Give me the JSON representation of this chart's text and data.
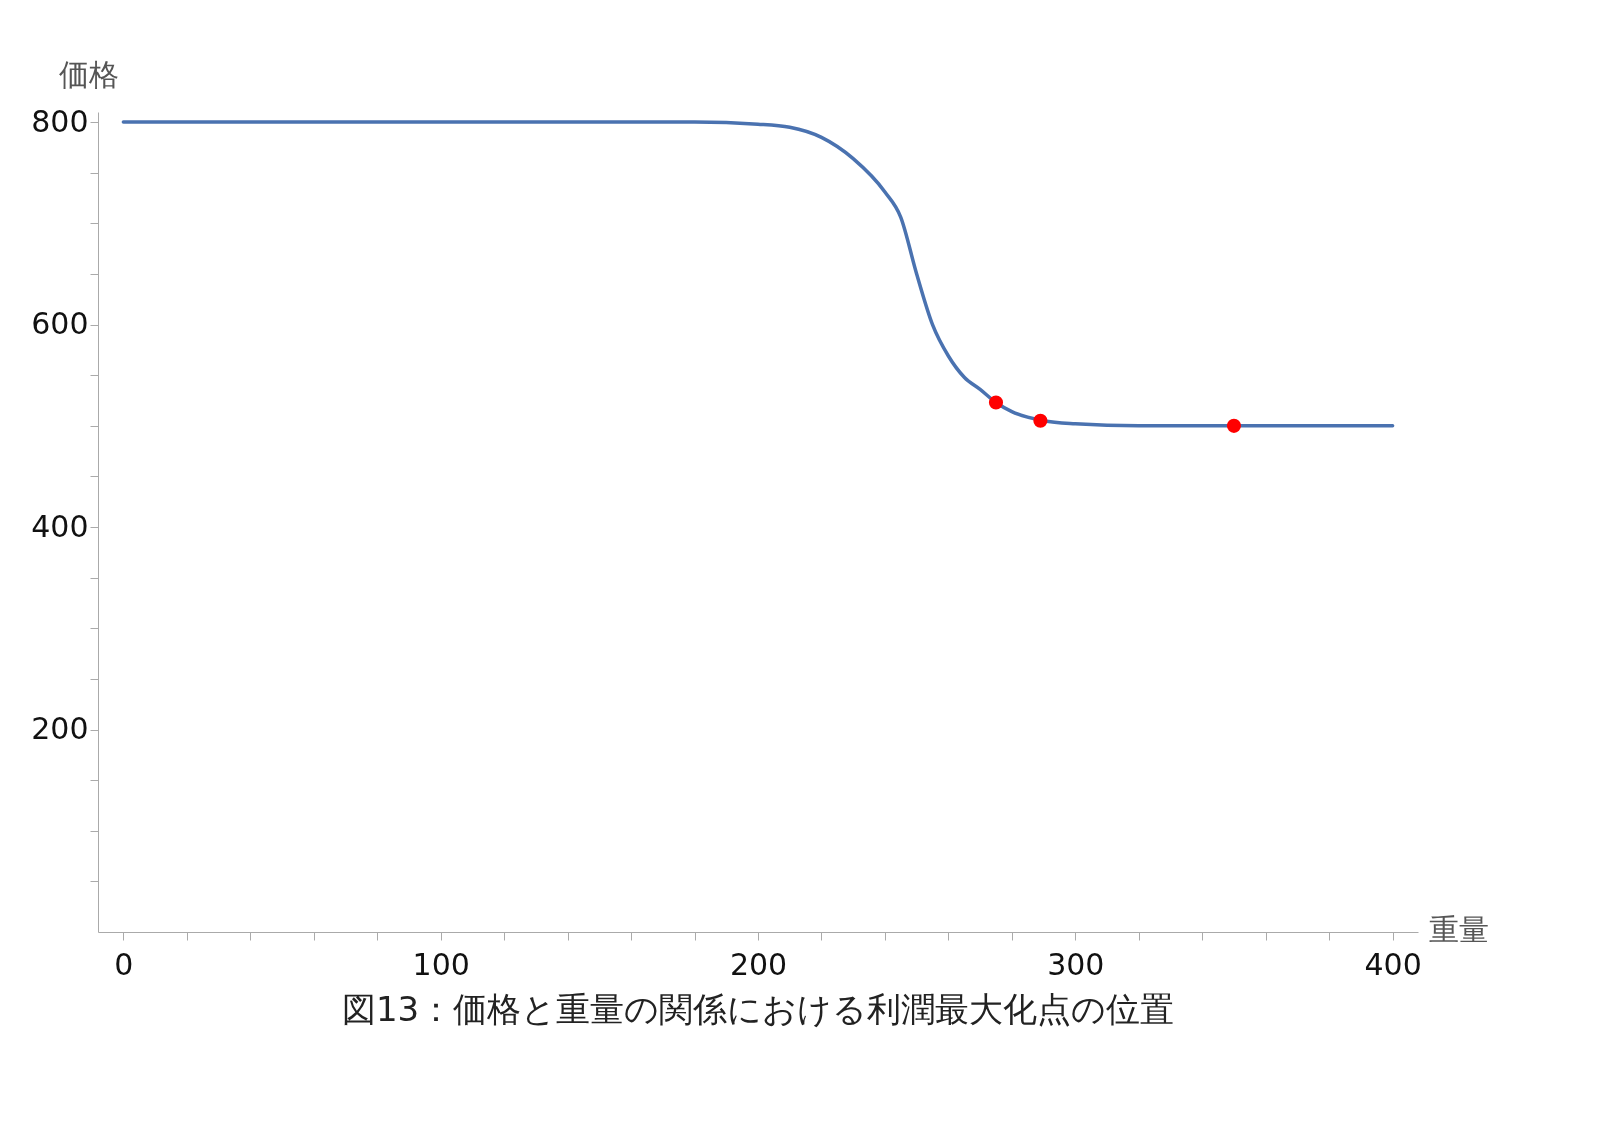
{
  "chart_data": {
    "type": "line",
    "xlabel": "重量",
    "ylabel": "価格",
    "annotations": [
      "図13：価格と重量の関係における利潤最大化点の位置"
    ],
    "xlim": [
      -8,
      408
    ],
    "ylim": [
      0,
      810
    ],
    "xticks": [
      0,
      {
        "value": 20,
        "label": null
      },
      {
        "value": 40,
        "label": null
      },
      {
        "value": 60,
        "label": null
      },
      {
        "value": 80,
        "label": null
      },
      100,
      {
        "value": 120,
        "label": null
      },
      {
        "value": 140,
        "label": null
      },
      {
        "value": 160,
        "label": null
      },
      {
        "value": 180,
        "label": null
      },
      200,
      {
        "value": 220,
        "label": null
      },
      {
        "value": 240,
        "label": null
      },
      {
        "value": 260,
        "label": null
      },
      {
        "value": 280,
        "label": null
      },
      300,
      {
        "value": 320,
        "label": null
      },
      {
        "value": 340,
        "label": null
      },
      {
        "value": 360,
        "label": null
      },
      {
        "value": 380,
        "label": null
      },
      400
    ],
    "yticks": [
      {
        "value": 50,
        "label": null
      },
      {
        "value": 100,
        "label": null
      },
      {
        "value": 150,
        "label": null
      },
      200,
      {
        "value": 250,
        "label": null
      },
      {
        "value": 300,
        "label": null
      },
      {
        "value": 350,
        "label": null
      },
      400,
      {
        "value": 450,
        "label": null
      },
      {
        "value": 500,
        "label": null
      },
      {
        "value": 550,
        "label": null
      },
      600,
      {
        "value": 650,
        "label": null
      },
      {
        "value": 700,
        "label": null
      },
      {
        "value": 750,
        "label": null
      },
      800
    ],
    "grid": false,
    "tick_labels": "xy",
    "series": [
      {
        "color": "#4a72b0",
        "x": [
          0,
          50,
          100,
          150,
          180,
          200,
          210,
          220,
          230,
          240,
          245,
          250,
          255,
          260,
          265,
          270,
          275,
          280,
          290,
          300,
          320,
          370,
          400
        ],
        "values": [
          800,
          800,
          800,
          800,
          800,
          798,
          795,
          785,
          764,
          731,
          706,
          650,
          600,
          569,
          548,
          536,
          523,
          514,
          505,
          502,
          500,
          500,
          500
        ],
        "line_style": "solid",
        "marker": "none"
      },
      {
        "type": "scatter",
        "color": "#ff0000",
        "x": [
          275,
          289,
          350
        ],
        "values": [
          523,
          505,
          500
        ],
        "marker": "circle"
      }
    ]
  }
}
